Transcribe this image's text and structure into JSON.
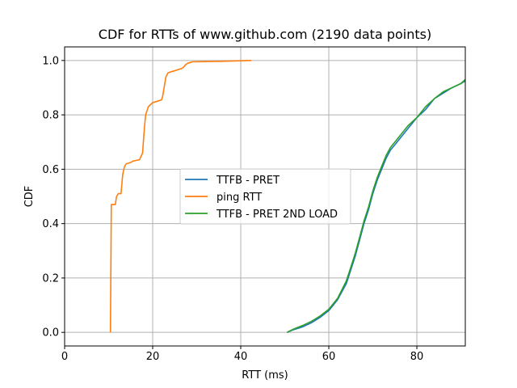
{
  "chart_data": {
    "type": "line",
    "title": "CDF for RTTs of www.github.com (2190 data points)",
    "xlabel": "RTT (ms)",
    "ylabel": "CDF",
    "xlim": [
      0,
      91
    ],
    "ylim": [
      -0.05,
      1.05
    ],
    "xticks": [
      0,
      20,
      40,
      60,
      80
    ],
    "yticks": [
      0.0,
      0.2,
      0.4,
      0.6,
      0.8,
      1.0
    ],
    "xtick_labels": [
      "0",
      "20",
      "40",
      "60",
      "80"
    ],
    "ytick_labels": [
      "0.0",
      "0.2",
      "0.4",
      "0.6",
      "0.8",
      "1.0"
    ],
    "grid": true,
    "legend": "center",
    "series": [
      {
        "name": "TTFB - PRET",
        "color": "#1f77b4",
        "x": [
          50.5,
          52,
          54,
          56,
          58,
          60,
          62,
          64,
          65,
          66,
          67,
          68,
          69,
          70,
          71,
          72,
          73,
          74,
          75,
          76,
          77,
          78,
          80,
          82,
          84,
          86,
          88,
          90,
          91
        ],
        "y": [
          0.0,
          0.01,
          0.02,
          0.035,
          0.055,
          0.08,
          0.12,
          0.18,
          0.23,
          0.28,
          0.34,
          0.4,
          0.45,
          0.51,
          0.56,
          0.6,
          0.64,
          0.67,
          0.69,
          0.71,
          0.73,
          0.75,
          0.79,
          0.82,
          0.86,
          0.88,
          0.9,
          0.915,
          0.925
        ]
      },
      {
        "name": "ping RTT",
        "color": "#ff7f0e",
        "x": [
          10.4,
          10.6,
          10.7,
          11.5,
          11.8,
          12.2,
          12.8,
          13.2,
          13.6,
          14.0,
          15.0,
          15.5,
          17.0,
          17.7,
          18.1,
          18.4,
          19.0,
          20.0,
          21.0,
          22.0,
          22.3,
          22.7,
          23.0,
          23.5,
          24.5,
          25.5,
          26.5,
          27.0,
          27.5,
          28.0,
          29.0,
          32.0,
          36.0,
          40.0,
          42.4
        ],
        "y": [
          0.0,
          0.47,
          0.47,
          0.47,
          0.5,
          0.51,
          0.51,
          0.58,
          0.61,
          0.62,
          0.625,
          0.63,
          0.635,
          0.66,
          0.75,
          0.8,
          0.83,
          0.845,
          0.85,
          0.855,
          0.87,
          0.91,
          0.94,
          0.955,
          0.96,
          0.965,
          0.97,
          0.975,
          0.985,
          0.99,
          0.995,
          0.996,
          0.997,
          0.999,
          1.0
        ]
      },
      {
        "name": "TTFB - PRET 2ND LOAD",
        "color": "#2ca02c",
        "x": [
          50.5,
          52,
          54,
          56,
          58,
          60,
          62,
          64,
          65,
          66,
          67,
          68,
          69,
          70,
          71,
          72,
          73,
          74,
          75,
          76,
          77,
          78,
          80,
          82,
          84,
          86,
          88,
          90,
          91
        ],
        "y": [
          0.0,
          0.012,
          0.025,
          0.04,
          0.06,
          0.085,
          0.125,
          0.19,
          0.24,
          0.29,
          0.35,
          0.41,
          0.46,
          0.52,
          0.57,
          0.61,
          0.65,
          0.68,
          0.7,
          0.72,
          0.74,
          0.76,
          0.79,
          0.83,
          0.86,
          0.885,
          0.9,
          0.915,
          0.93
        ]
      }
    ]
  }
}
